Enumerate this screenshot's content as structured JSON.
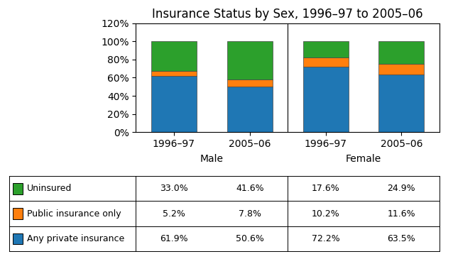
{
  "chart_data": {
    "type": "bar",
    "stacked": true,
    "title": "Insurance Status by Sex, 1996–97 to 2005–06",
    "categories": [
      "1996–97",
      "2005–06",
      "1996–97",
      "2005–06"
    ],
    "group_labels": [
      "Male",
      "Female"
    ],
    "ylim": [
      0,
      120
    ],
    "yticks": [
      {
        "value": 0,
        "label": "0%"
      },
      {
        "value": 20,
        "label": "20%"
      },
      {
        "value": 40,
        "label": "40%"
      },
      {
        "value": 60,
        "label": "60%"
      },
      {
        "value": 80,
        "label": "80%"
      },
      {
        "value": 100,
        "label": "100%"
      },
      {
        "value": 120,
        "label": "120%"
      }
    ],
    "series": [
      {
        "name": "Any private insurance",
        "values": [
          61.9,
          50.6,
          72.2,
          63.5
        ],
        "value_labels": [
          "61.9%",
          "50.6%",
          "72.2%",
          "63.5%"
        ]
      },
      {
        "name": "Public insurance only",
        "values": [
          5.2,
          7.8,
          10.2,
          11.6
        ],
        "value_labels": [
          "5.2%",
          "7.8%",
          "10.2%",
          "11.6%"
        ]
      },
      {
        "name": "Uninsured",
        "values": [
          33.0,
          41.6,
          17.6,
          24.9
        ],
        "value_labels": [
          "33.0%",
          "41.6%",
          "17.6%",
          "24.9%"
        ]
      }
    ]
  }
}
